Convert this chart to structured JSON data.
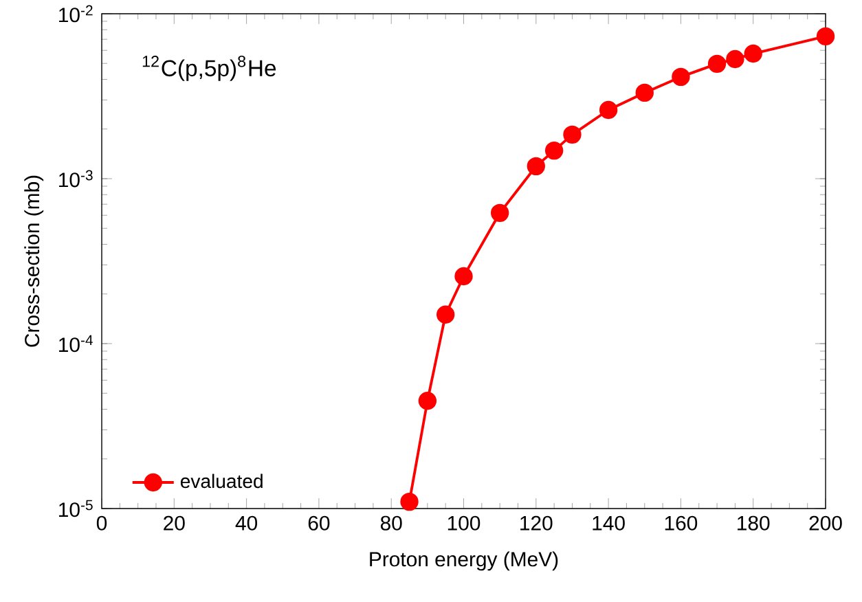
{
  "chart_data": {
    "type": "line",
    "xlabel": "Proton energy (MeV)",
    "ylabel": "Cross-section (mb)",
    "annotations": [
      "$^{12}$C(p,5p)$^{8}$He"
    ],
    "series": [
      {
        "name": "evaluated",
        "color": "#ff0000",
        "x": [
          85,
          90,
          95,
          100,
          110,
          120,
          125,
          130,
          140,
          150,
          160,
          170,
          175,
          180,
          200
        ],
        "values": [
          1.1e-05,
          4.5e-05,
          0.00015,
          0.000256,
          0.00062,
          0.00119,
          0.00148,
          0.00185,
          0.00261,
          0.00332,
          0.00414,
          0.00497,
          0.00531,
          0.00573,
          0.00729
        ]
      }
    ],
    "xlim": [
      0,
      200
    ],
    "xticks": [
      0,
      20,
      40,
      60,
      80,
      100,
      120,
      140,
      160,
      180,
      200
    ],
    "ylim": [
      1e-05,
      0.01
    ],
    "yticks": [
      {
        "value": 1e-05,
        "label": "10$^{-5}$"
      },
      {
        "value": 0.0001,
        "label": "10$^{-4}$"
      },
      {
        "value": 0.001,
        "label": "10$^{-3}$"
      },
      {
        "value": 0.01,
        "label": "10$^{-2}$"
      }
    ],
    "log": "y",
    "marker": "circle",
    "line_style": "solid",
    "legend": "bottom left",
    "grid": false
  }
}
